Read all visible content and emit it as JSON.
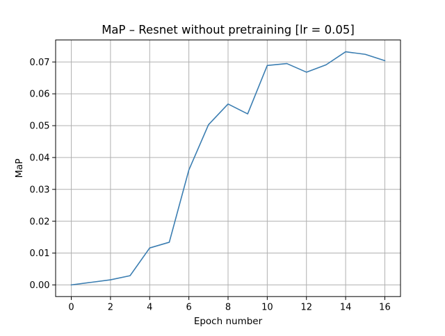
{
  "chart_data": {
    "type": "line",
    "title": "MaP – Resnet without pretraining [lr = 0.05]",
    "xlabel": "Epoch number",
    "ylabel": "MaP",
    "xlim": [
      -0.8,
      16.8
    ],
    "ylim": [
      -0.00366,
      0.0769
    ],
    "xticks": [
      0,
      2,
      4,
      6,
      8,
      10,
      12,
      14,
      16
    ],
    "xtick_labels": [
      "0",
      "2",
      "4",
      "6",
      "8",
      "10",
      "12",
      "14",
      "16"
    ],
    "yticks": [
      0.0,
      0.01,
      0.02,
      0.03,
      0.04,
      0.05,
      0.06,
      0.07
    ],
    "ytick_labels": [
      "0.00",
      "0.01",
      "0.02",
      "0.03",
      "0.04",
      "0.05",
      "0.06",
      "0.07"
    ],
    "grid": true,
    "series": [
      {
        "color": "#3a7db1",
        "x": [
          0,
          1,
          2,
          3,
          4,
          5,
          6,
          7,
          8,
          9,
          10,
          11,
          12,
          13,
          14,
          15,
          16
        ],
        "y": [
          0.0,
          0.0008,
          0.0016,
          0.0029,
          0.0116,
          0.0134,
          0.0361,
          0.0503,
          0.0568,
          0.0537,
          0.0689,
          0.0695,
          0.0668,
          0.0691,
          0.0732,
          0.0724,
          0.0704
        ]
      }
    ]
  }
}
